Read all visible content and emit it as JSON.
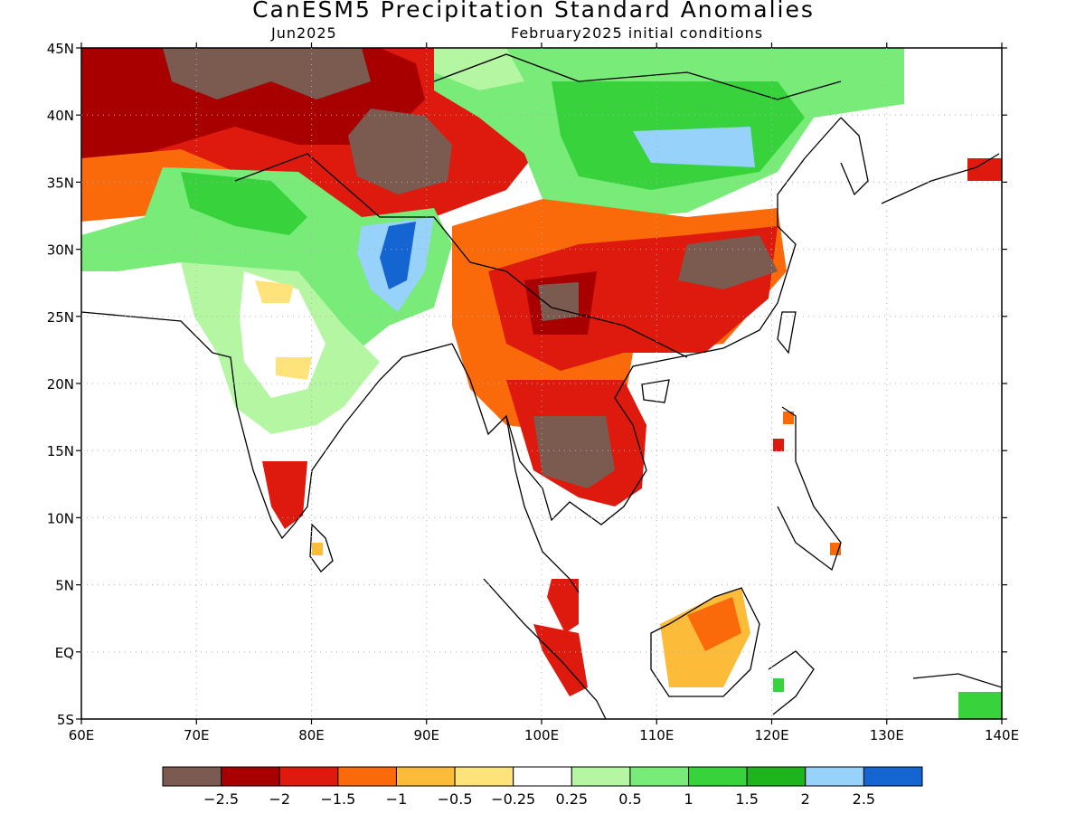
{
  "title": "CanESM5 Precipitation Standard Anomalies",
  "subtitle_left": "Jun2025",
  "subtitle_right": "February2025 initial conditions",
  "lat_labels": [
    "45N",
    "40N",
    "35N",
    "30N",
    "25N",
    "20N",
    "15N",
    "10N",
    "5N",
    "EQ",
    "5S"
  ],
  "lon_labels": [
    "60E",
    "70E",
    "80E",
    "90E",
    "100E",
    "110E",
    "120E",
    "130E",
    "140E"
  ],
  "legend": {
    "colors": [
      "#7b5a4f",
      "#a80000",
      "#de1a0e",
      "#fa6a0a",
      "#fdbb3a",
      "#fde37a",
      "#ffffff",
      "#b4f6a2",
      "#78eb78",
      "#37d23c",
      "#1eb41e",
      "#96d2fa",
      "#1464d2"
    ],
    "labels": [
      "−2.5",
      "−2",
      "−1.5",
      "−1",
      "−0.5",
      "−0.25",
      "0.25",
      "0.5",
      "1",
      "1.5",
      "2",
      "2.5"
    ]
  }
}
